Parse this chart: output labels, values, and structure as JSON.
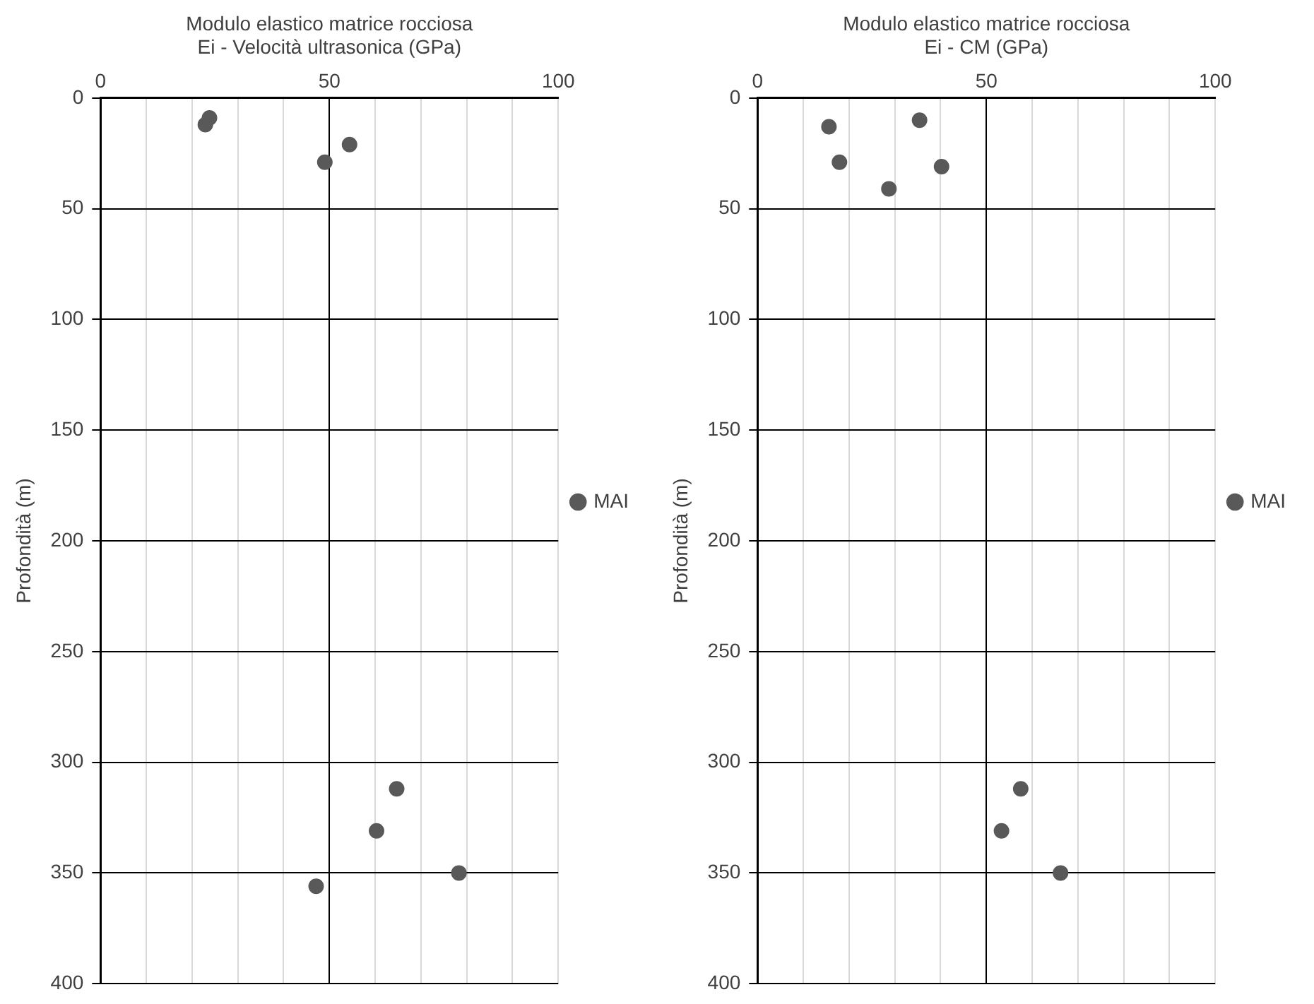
{
  "chart_data": [
    {
      "type": "scatter",
      "xlabel": "Modulo elastico matrice rocciosa\nEi - Velocità ultrasonica (GPa)",
      "ylabel": "Profondità (m)",
      "xlim": [
        0,
        100
      ],
      "xticks": [
        0,
        {
          "value": 10,
          "label": null
        },
        {
          "value": 20,
          "label": null
        },
        {
          "value": 30,
          "label": null
        },
        {
          "value": 40,
          "label": null
        },
        50,
        {
          "value": 60,
          "label": null
        },
        {
          "value": 70,
          "label": null
        },
        {
          "value": 80,
          "label": null
        },
        {
          "value": 90,
          "label": null
        },
        100
      ],
      "ylim": [
        400,
        0
      ],
      "yticks": [
        0,
        50,
        100,
        150,
        200,
        250,
        300,
        350,
        400
      ],
      "grid": true,
      "legend": "right",
      "marker": "circle",
      "series": [
        {
          "name": "MAI",
          "color": "#595959",
          "x": [
            23.8,
            22.9,
            54.4,
            49.0,
            64.7,
            60.3,
            78.3,
            47.1
          ],
          "values": [
            9,
            12,
            21,
            29,
            312,
            331,
            350,
            356
          ]
        }
      ]
    },
    {
      "type": "scatter",
      "xlabel": "Modulo elastico matrice rocciosa\nEi - CM (GPa)",
      "ylabel": "Profondità (m)",
      "xlim": [
        0,
        100
      ],
      "xticks": [
        0,
        {
          "value": 10,
          "label": null
        },
        {
          "value": 20,
          "label": null
        },
        {
          "value": 30,
          "label": null
        },
        {
          "value": 40,
          "label": null
        },
        50,
        {
          "value": 60,
          "label": null
        },
        {
          "value": 70,
          "label": null
        },
        {
          "value": 80,
          "label": null
        },
        {
          "value": 90,
          "label": null
        },
        100
      ],
      "ylim": [
        400,
        0
      ],
      "yticks": [
        0,
        50,
        100,
        150,
        200,
        250,
        300,
        350,
        400
      ],
      "grid": true,
      "legend": "right",
      "marker": "circle",
      "series": [
        {
          "name": "MAI",
          "color": "#595959",
          "x": [
            15.6,
            35.4,
            17.9,
            40.2,
            28.7,
            57.5,
            53.3,
            66.2
          ],
          "values": [
            13,
            10,
            29,
            31,
            41,
            312,
            331,
            350
          ]
        }
      ]
    }
  ]
}
